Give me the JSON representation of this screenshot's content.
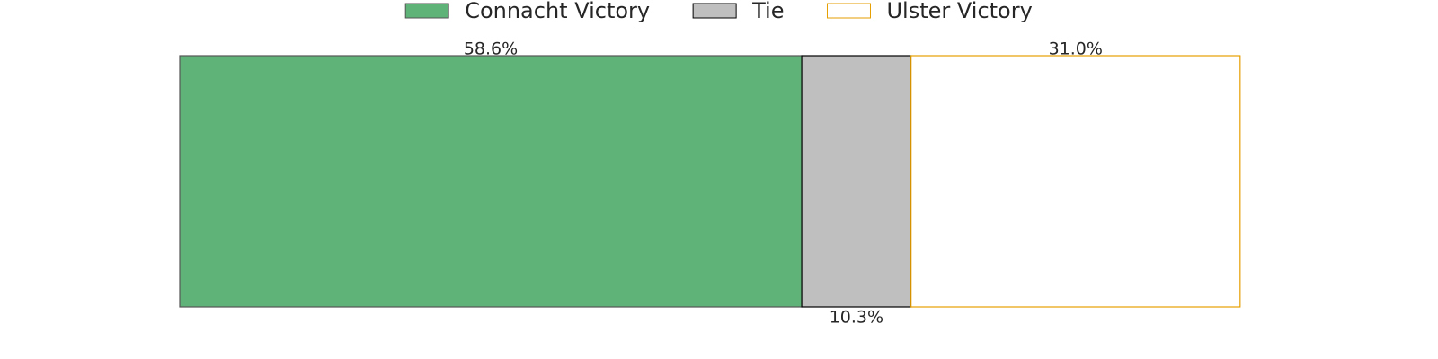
{
  "chart_data": {
    "type": "bar",
    "orientation": "horizontal",
    "stacked": true,
    "xlim": [
      0,
      100
    ],
    "legend": "top",
    "series": [
      {
        "name": "Connacht Victory",
        "color": "#5fb378",
        "edgecolor": "#555555",
        "values": [
          58.6
        ],
        "value_labels": [
          "58.6%"
        ],
        "label_position": "above"
      },
      {
        "name": "Tie",
        "color": "#bfbfbf",
        "edgecolor": "#000000",
        "values": [
          10.3
        ],
        "value_labels": [
          "10.3%"
        ],
        "label_position": "below"
      },
      {
        "name": "Ulster Victory",
        "color": "#ffffff",
        "edgecolor": "#e69f00",
        "values": [
          31.0
        ],
        "value_labels": [
          "31.0%"
        ],
        "label_position": "above"
      }
    ]
  }
}
